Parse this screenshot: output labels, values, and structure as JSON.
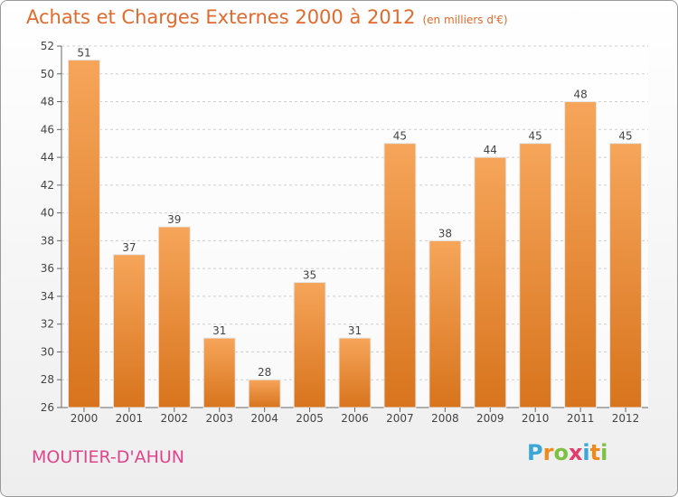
{
  "title": "Achats et Charges Externes 2000 à 2012",
  "unit_label": "(en milliers d'€)",
  "commune": "MOUTIER-D'AHUN",
  "logo": {
    "letters": [
      "P",
      "r",
      "o",
      "x",
      "i",
      "t",
      "i"
    ],
    "colors": [
      "#3aa7d8",
      "#f08a1c",
      "#7cc143",
      "#e43b6c",
      "#3aa7d8",
      "#f08a1c",
      "#7cc143"
    ]
  },
  "colors": {
    "title": "#e26a2c",
    "bar_top": "#f6a55a",
    "bar_bottom": "#d8741d",
    "commune": "#e0458c"
  },
  "chart_data": {
    "type": "bar",
    "categories": [
      "2000",
      "2001",
      "2002",
      "2003",
      "2004",
      "2005",
      "2006",
      "2007",
      "2008",
      "2009",
      "2010",
      "2011",
      "2012"
    ],
    "values": [
      51,
      37,
      39,
      31,
      28,
      35,
      31,
      45,
      38,
      44,
      45,
      48,
      45
    ],
    "ylim": [
      26,
      52
    ],
    "yticks": [
      26,
      28,
      30,
      32,
      34,
      36,
      38,
      40,
      42,
      44,
      46,
      48,
      50,
      52
    ],
    "grid": true,
    "legend": "none"
  }
}
